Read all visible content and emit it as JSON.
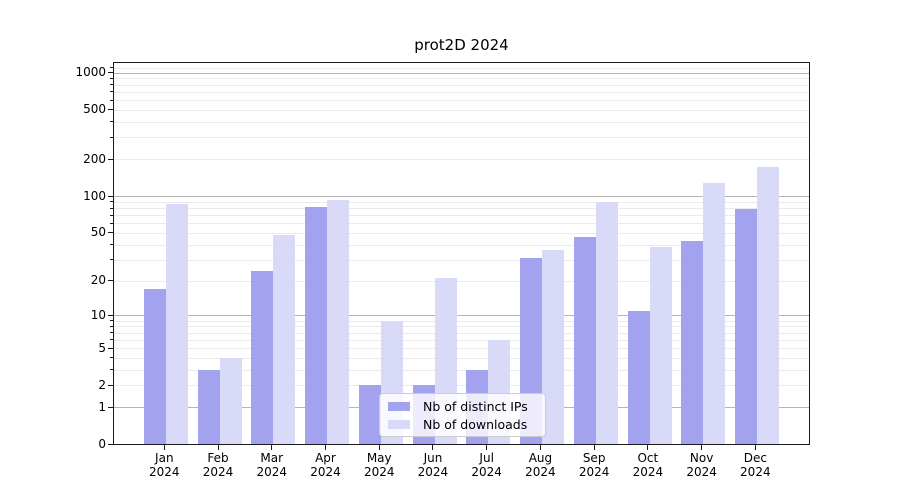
{
  "chart_data": {
    "type": "bar",
    "title": "prot2D 2024",
    "categories": [
      "Jan",
      "Feb",
      "Mar",
      "Apr",
      "May",
      "Jun",
      "Jul",
      "Aug",
      "Sep",
      "Oct",
      "Nov",
      "Dec"
    ],
    "year_label": "2024",
    "series": [
      {
        "name": "Nb of distinct IPs",
        "color": "#a2a2ef",
        "values": [
          17,
          3,
          24,
          81,
          2,
          2,
          3,
          31,
          46,
          11,
          43,
          79
        ]
      },
      {
        "name": "Nb of downloads",
        "color": "#d9d9f8",
        "values": [
          87,
          4,
          48,
          93,
          9,
          21,
          6,
          36,
          90,
          38,
          128,
          174
        ]
      }
    ],
    "yscale": "log10(1+x)",
    "ylim": [
      0,
      1200
    ],
    "yticks_labeled": [
      0,
      1,
      2,
      5,
      10,
      20,
      50,
      100,
      200,
      500,
      1000
    ],
    "gridlines_major": [
      1,
      10,
      100,
      1000
    ],
    "gridlines_minor": [
      2,
      3,
      4,
      5,
      6,
      7,
      8,
      9,
      20,
      30,
      40,
      50,
      60,
      70,
      80,
      90,
      200,
      300,
      400,
      500,
      600,
      700,
      800,
      900,
      1100
    ],
    "legend": {
      "items": [
        "Nb of distinct IPs",
        "Nb of downloads"
      ],
      "position": "lower-center"
    },
    "colors": {
      "grid_major": "#b5b5b5",
      "grid_minor": "#eaeaea",
      "axis": "#1a1a1a",
      "text": "#000000",
      "background": "#ffffff"
    }
  }
}
